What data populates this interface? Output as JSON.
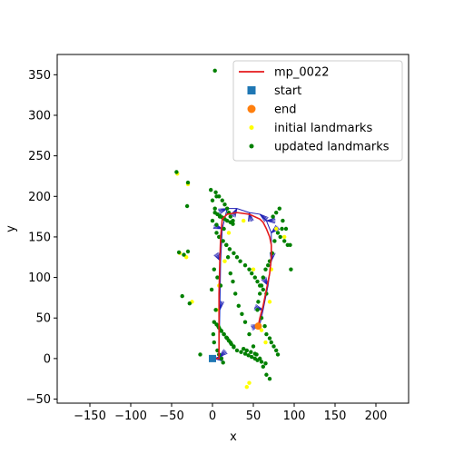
{
  "chart_data": {
    "type": "scatter",
    "xlabel": "x",
    "ylabel": "y",
    "xlim": [
      -190,
      240
    ],
    "ylim": [
      -55,
      375
    ],
    "xticks": [
      -150,
      -100,
      -50,
      0,
      50,
      100,
      150,
      200
    ],
    "yticks": [
      -50,
      0,
      50,
      100,
      150,
      200,
      250,
      300,
      350
    ],
    "legend_position": "top-right",
    "colors": {
      "trajectory": "#e41a1c",
      "ref_path": "#1f1fb4",
      "start": "#1f77b4",
      "end": "#ff7f0e",
      "initial_landmarks": "#ffff00",
      "updated_landmarks": "#008000"
    },
    "legend": [
      {
        "label": "mp_0022",
        "marker": "line",
        "color": "#e41a1c"
      },
      {
        "label": "start",
        "marker": "square",
        "color": "#1f77b4"
      },
      {
        "label": "end",
        "marker": "circle",
        "color": "#ff7f0e"
      },
      {
        "label": "initial landmarks",
        "marker": "small-dot",
        "color": "#ffff00"
      },
      {
        "label": "updated landmarks",
        "marker": "small-dot",
        "color": "#008000"
      }
    ],
    "trajectory": {
      "name": "mp_0022",
      "x": [
        0,
        8,
        8,
        8,
        9,
        10,
        12,
        18,
        30,
        45,
        58,
        62,
        66,
        70,
        72,
        72,
        70,
        66,
        62,
        58,
        56
      ],
      "y": [
        0,
        0,
        30,
        80,
        120,
        150,
        172,
        178,
        180,
        178,
        172,
        168,
        160,
        150,
        140,
        125,
        105,
        85,
        65,
        50,
        40
      ]
    },
    "reference_path": {
      "x": [
        2,
        8,
        9,
        10,
        12,
        18,
        30,
        45,
        58,
        66,
        72,
        72,
        68,
        62,
        58
      ],
      "y": [
        0,
        2,
        60,
        120,
        160,
        185,
        185,
        180,
        178,
        170,
        155,
        120,
        90,
        60,
        42
      ]
    },
    "start": {
      "x": 0,
      "y": 0
    },
    "end": {
      "x": 56,
      "y": 40
    },
    "initial_landmarks": {
      "x": [
        -43,
        -30,
        -40,
        -32,
        -25,
        20,
        38,
        15,
        72,
        78,
        88,
        5,
        8,
        60,
        65,
        45,
        42,
        50,
        70
      ],
      "y": [
        228,
        215,
        130,
        125,
        70,
        155,
        170,
        120,
        110,
        160,
        150,
        60,
        90,
        35,
        20,
        -30,
        -35,
        110,
        70
      ],
      "color": "#ffff00"
    },
    "updated_landmarks": {
      "x": [
        3,
        -44,
        -30,
        -31,
        -41,
        -37,
        -30,
        -35,
        -28,
        -15,
        -2,
        0,
        5,
        8,
        2,
        6,
        10,
        -1,
        4,
        7,
        1,
        2,
        6,
        8,
        11,
        13,
        5,
        0,
        3,
        9,
        14,
        17,
        19,
        22,
        25,
        28,
        32,
        36,
        40,
        45,
        50,
        54,
        58,
        62,
        66,
        70,
        74,
        78,
        82,
        86,
        90,
        95,
        85,
        80,
        76,
        73,
        70,
        68,
        65,
        62,
        60,
        58,
        56,
        55,
        60,
        64,
        66,
        70,
        72,
        75,
        78,
        80,
        83,
        88,
        92,
        96,
        4,
        8,
        12,
        15,
        18,
        20,
        22,
        25,
        5,
        9,
        13,
        17,
        21,
        26,
        30,
        34,
        40,
        45,
        48,
        52,
        55,
        58,
        62,
        66,
        10,
        14,
        18,
        22,
        26,
        30,
        35,
        40,
        44,
        48,
        52,
        55,
        60,
        65,
        3,
        6,
        9,
        12,
        15,
        18,
        22,
        25,
        2,
        5,
        8,
        11,
        14,
        17,
        20,
        23,
        26,
        38,
        42,
        47,
        52
      ],
      "y": [
        355,
        230,
        217,
        188,
        131,
        77,
        132,
        128,
        68,
        5,
        208,
        170,
        165,
        150,
        110,
        100,
        90,
        85,
        60,
        40,
        30,
        20,
        10,
        5,
        0,
        -5,
        200,
        195,
        185,
        175,
        160,
        140,
        125,
        105,
        95,
        80,
        65,
        55,
        45,
        30,
        15,
        5,
        0,
        -10,
        -20,
        -25,
        175,
        180,
        185,
        170,
        160,
        140,
        160,
        155,
        145,
        130,
        120,
        115,
        110,
        100,
        90,
        80,
        70,
        60,
        50,
        40,
        30,
        25,
        20,
        15,
        10,
        5,
        150,
        145,
        140,
        110,
        205,
        200,
        195,
        190,
        185,
        180,
        175,
        170,
        155,
        150,
        145,
        140,
        135,
        130,
        125,
        120,
        115,
        110,
        105,
        100,
        95,
        90,
        85,
        80,
        35,
        30,
        25,
        20,
        15,
        10,
        8,
        6,
        4,
        2,
        0,
        -2,
        -4,
        -6,
        180,
        178,
        176,
        174,
        172,
        170,
        168,
        166,
        45,
        42,
        38,
        34,
        30,
        26,
        22,
        18,
        14,
        12,
        10,
        8,
        6
      ],
      "color": "#008000"
    },
    "fan_lines": {
      "origin_points": [
        {
          "x": 12,
          "y": 180
        },
        {
          "x": 70,
          "y": 155
        },
        {
          "x": 8,
          "y": 2
        }
      ]
    }
  }
}
